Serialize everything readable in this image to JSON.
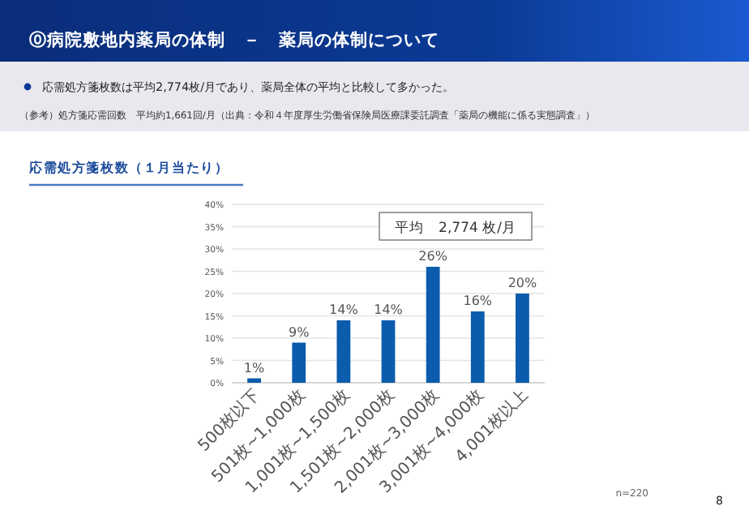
{
  "chart_data": {
    "type": "bar",
    "title": "応需処方箋枚数（１月当たり）",
    "categories": [
      "500枚以下",
      "501枚~1,000枚",
      "1,001枚~1,500枚",
      "1,501枚~2,000枚",
      "2,001枚~3,000枚",
      "3,001枚~4,000枚",
      "4,001枚以上"
    ],
    "values": [
      1,
      9,
      14,
      14,
      26,
      16,
      20
    ],
    "color": "#0b5cad",
    "ylim": [
      0,
      40
    ],
    "yticks": [
      {
        "value": 0,
        "label": "0%"
      },
      {
        "value": 5,
        "label": "5%"
      },
      {
        "value": 10,
        "label": "10%"
      },
      {
        "value": 15,
        "label": "15%"
      },
      {
        "value": 20,
        "label": "20%"
      },
      {
        "value": 25,
        "label": "25%"
      },
      {
        "value": 30,
        "label": "30%"
      },
      {
        "value": 35,
        "label": "35%"
      },
      {
        "value": 40,
        "label": "40%"
      }
    ],
    "grid": "y",
    "value_labels": [
      "1%",
      "9%",
      "14%",
      "14%",
      "26%",
      "16%",
      "20%"
    ],
    "annotations": [
      "⓪病院敷地内薬局の体制　－　薬局の体制について",
      "応需処方箋枚数は平均2,774枚/月であり、薬局全体の平均と比較して多かった。",
      "（参考）処方箋応需回数　平均約1,661回/月（出典：令和４年度厚生労働省保険局医療課委託調査「薬局の機能に係る実態調査」）",
      "平均　2,774 枚/月",
      "n=220",
      "8"
    ]
  }
}
